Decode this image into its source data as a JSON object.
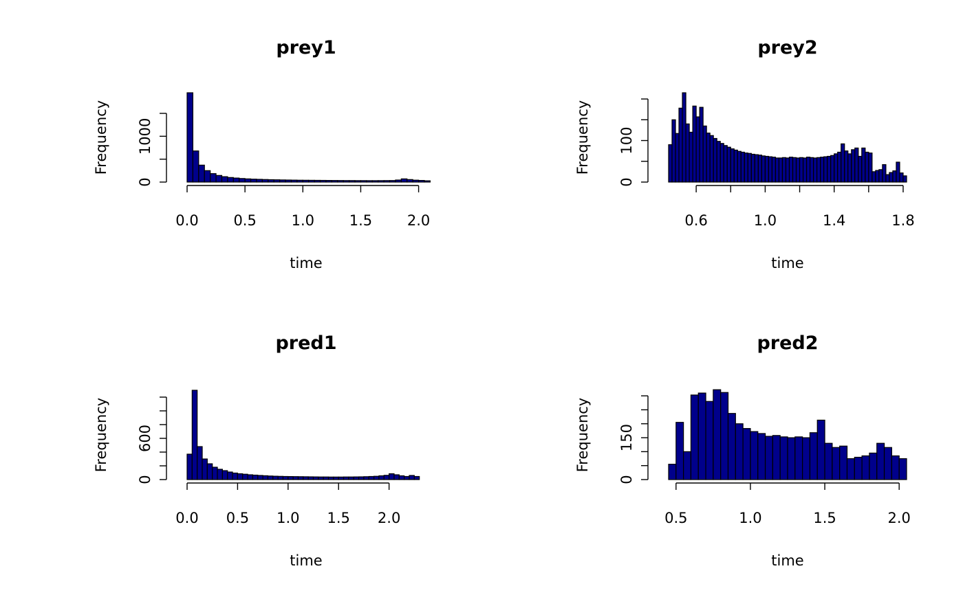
{
  "chart_data": [
    {
      "type": "bar",
      "title": "prey1",
      "xlabel": "time",
      "ylabel": "Frequency",
      "bar_color": "#00008B",
      "bin_width": 0.05,
      "x_start": 0.0,
      "xticks": [
        0.0,
        0.5,
        1.0,
        1.5,
        2.0
      ],
      "xtick_labels": [
        "0.0",
        "0.5",
        "1.0",
        "1.5",
        "2.0"
      ],
      "yticks": [
        0,
        500,
        1000,
        1500
      ],
      "ytick_labels": [
        "0",
        "",
        "1000",
        ""
      ],
      "ylim": [
        0,
        1950
      ],
      "values": [
        1950,
        680,
        370,
        250,
        185,
        145,
        118,
        100,
        88,
        78,
        70,
        64,
        60,
        56,
        52,
        50,
        47,
        45,
        43,
        41,
        40,
        39,
        38,
        37,
        36,
        35,
        34,
        33,
        33,
        32,
        32,
        31,
        31,
        32,
        33,
        34,
        45,
        70,
        55,
        42,
        36,
        28
      ]
    },
    {
      "type": "bar",
      "title": "prey2",
      "xlabel": "time",
      "ylabel": "Frequency",
      "bar_color": "#00008B",
      "bin_width": 0.02,
      "x_start": 0.44,
      "xticks": [
        0.6,
        0.8,
        1.0,
        1.2,
        1.4,
        1.6,
        1.8
      ],
      "xtick_labels": [
        "0.6",
        "",
        "1.0",
        "",
        "1.4",
        "",
        "1.8"
      ],
      "yticks": [
        0,
        50,
        100,
        150,
        200
      ],
      "ytick_labels": [
        "0",
        "",
        "100",
        "",
        ""
      ],
      "ylim": [
        0,
        215
      ],
      "values": [
        90,
        150,
        117,
        178,
        215,
        140,
        120,
        183,
        157,
        180,
        135,
        118,
        112,
        105,
        98,
        93,
        88,
        84,
        80,
        77,
        74,
        72,
        70,
        69,
        67,
        66,
        65,
        63,
        62,
        61,
        60,
        58,
        58,
        59,
        58,
        60,
        59,
        58,
        59,
        58,
        60,
        59,
        58,
        59,
        60,
        61,
        62,
        64,
        68,
        72,
        92,
        75,
        68,
        78,
        82,
        62,
        82,
        72,
        70,
        25,
        28,
        30,
        42,
        18,
        23,
        27,
        48,
        22,
        15
      ]
    },
    {
      "type": "bar",
      "title": "pred1",
      "xlabel": "time",
      "ylabel": "Frequency",
      "bar_color": "#00008B",
      "bin_width": 0.05,
      "x_start": 0.0,
      "xticks": [
        0.0,
        0.5,
        1.0,
        1.5,
        2.0
      ],
      "xtick_labels": [
        "0.0",
        "0.5",
        "1.0",
        "1.5",
        "2.0"
      ],
      "yticks": [
        0,
        200,
        400,
        600,
        800,
        1000,
        1200
      ],
      "ytick_labels": [
        "0",
        "",
        "",
        "600",
        "",
        "",
        ""
      ],
      "ylim": [
        0,
        1300
      ],
      "values": [
        370,
        1300,
        480,
        300,
        230,
        180,
        150,
        130,
        110,
        95,
        85,
        78,
        70,
        65,
        60,
        56,
        52,
        49,
        47,
        45,
        44,
        43,
        42,
        41,
        40,
        39,
        38,
        38,
        37,
        37,
        37,
        38,
        38,
        39,
        40,
        42,
        45,
        48,
        55,
        62,
        85,
        70,
        55,
        45,
        60,
        45
      ]
    },
    {
      "type": "bar",
      "title": "pred2",
      "xlabel": "time",
      "ylabel": "Frequency",
      "bar_color": "#00008B",
      "bin_width": 0.05,
      "x_start": 0.45,
      "xticks": [
        0.5,
        1.0,
        1.5,
        2.0
      ],
      "xtick_labels": [
        "0.5",
        "1.0",
        "1.5",
        "2.0"
      ],
      "yticks": [
        0,
        50,
        100,
        150,
        200,
        250,
        300
      ],
      "ytick_labels": [
        "0",
        "",
        "",
        "150",
        "",
        "",
        ""
      ],
      "ylim": [
        0,
        320
      ],
      "values": [
        55,
        205,
        100,
        303,
        310,
        280,
        322,
        312,
        237,
        200,
        183,
        172,
        165,
        155,
        158,
        153,
        150,
        153,
        150,
        168,
        213,
        130,
        115,
        120,
        75,
        80,
        85,
        95,
        130,
        115,
        85,
        75
      ]
    }
  ]
}
